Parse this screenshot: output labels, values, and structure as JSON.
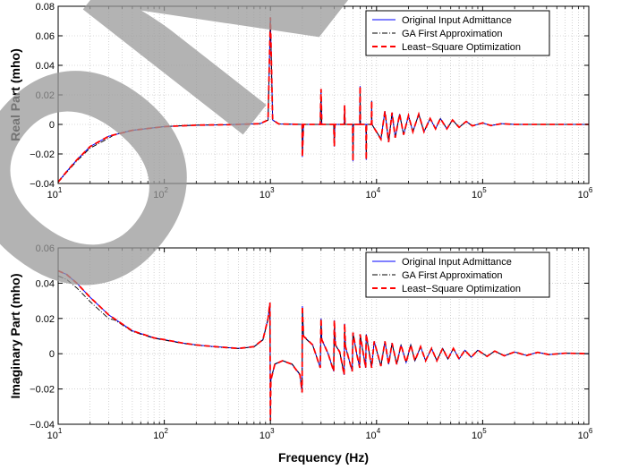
{
  "colors": {
    "original": "#0000ff",
    "ga": "#000000",
    "ls": "#ff0000",
    "watermark": "#9a9a9a"
  },
  "watermark_text": "ONLY",
  "chart_data": [
    {
      "type": "line",
      "xscale": "log",
      "xlim": [
        10,
        1000000
      ],
      "ylim": [
        -0.04,
        0.08
      ],
      "xlabel": "",
      "ylabel": "Real Part (mho)",
      "yticks": [
        "0.08",
        "0.06",
        "0.04",
        "0.02",
        "0",
        "−0.02",
        "−0.04"
      ],
      "ytick_values": [
        0.08,
        0.06,
        0.04,
        0.02,
        0,
        -0.02,
        -0.04
      ],
      "xticks": [
        {
          "base": "10",
          "exp": "1",
          "value": 10
        },
        {
          "base": "10",
          "exp": "2",
          "value": 100
        },
        {
          "base": "10",
          "exp": "3",
          "value": 1000
        },
        {
          "base": "10",
          "exp": "4",
          "value": 10000
        },
        {
          "base": "10",
          "exp": "5",
          "value": 100000
        },
        {
          "base": "10",
          "exp": "6",
          "value": 1000000
        }
      ],
      "grid": true,
      "legend_position": "top-right",
      "series": [
        {
          "name": "Original Input Admittance",
          "style": "solid"
        },
        {
          "name": "GA First Approximation",
          "style": "dashdot"
        },
        {
          "name": "Least−Square Optimization",
          "style": "dashed"
        }
      ],
      "baseline": [
        [
          10,
          -0.039
        ],
        [
          12,
          -0.032
        ],
        [
          15,
          -0.024
        ],
        [
          20,
          -0.015
        ],
        [
          30,
          -0.008
        ],
        [
          50,
          -0.004
        ],
        [
          100,
          -0.0015
        ],
        [
          200,
          -0.0005
        ],
        [
          400,
          -0.0002
        ],
        [
          800,
          0.0005
        ],
        [
          950,
          0.003
        ],
        [
          1000,
          0.0725
        ],
        [
          1050,
          0.003
        ],
        [
          1200,
          0.0003
        ],
        [
          1990,
          0.0
        ],
        [
          2000,
          -0.022
        ],
        [
          2050,
          0.0
        ],
        [
          2950,
          0.0
        ],
        [
          3000,
          0.024
        ],
        [
          3050,
          0.0
        ],
        [
          3950,
          0.0
        ],
        [
          4000,
          -0.015
        ],
        [
          4050,
          0.0
        ],
        [
          4950,
          0.0
        ],
        [
          5000,
          0.013
        ],
        [
          5050,
          0.0
        ],
        [
          5950,
          0.0
        ],
        [
          6000,
          -0.025
        ],
        [
          6050,
          0.0
        ],
        [
          6950,
          0.0
        ],
        [
          7000,
          0.026
        ],
        [
          7050,
          0.0
        ],
        [
          7950,
          0.0
        ],
        [
          8000,
          -0.024
        ],
        [
          8050,
          0.0
        ],
        [
          8950,
          0.0
        ],
        [
          9000,
          0.016
        ],
        [
          9050,
          0.0
        ],
        [
          11000,
          -0.01
        ],
        [
          12000,
          0.009
        ],
        [
          13000,
          -0.012
        ],
        [
          14000,
          0.008
        ],
        [
          15000,
          -0.009
        ],
        [
          16500,
          0.007
        ],
        [
          18000,
          -0.007
        ],
        [
          20000,
          0.006
        ],
        [
          22000,
          -0.005
        ],
        [
          25000,
          0.007
        ],
        [
          28000,
          -0.005
        ],
        [
          32000,
          0.004
        ],
        [
          36000,
          -0.003
        ],
        [
          40000,
          0.004
        ],
        [
          46000,
          -0.003
        ],
        [
          52000,
          0.003
        ],
        [
          60000,
          -0.002
        ],
        [
          70000,
          0.002
        ],
        [
          80000,
          -0.001
        ],
        [
          100000,
          0.001
        ],
        [
          120000,
          -0.0008
        ],
        [
          150000,
          0.0005
        ],
        [
          200000,
          0.0
        ],
        [
          1000000,
          0.0
        ]
      ]
    },
    {
      "type": "line",
      "xscale": "log",
      "xlim": [
        10,
        1000000
      ],
      "ylim": [
        -0.04,
        0.06
      ],
      "xlabel": "Frequency (Hz)",
      "ylabel": "Imaginary Part (mho)",
      "yticks": [
        "0.06",
        "0.04",
        "0.02",
        "0",
        "−0.02",
        "−0.04"
      ],
      "ytick_values": [
        0.06,
        0.04,
        0.02,
        0,
        -0.02,
        -0.04
      ],
      "xticks": [
        {
          "base": "10",
          "exp": "1",
          "value": 10
        },
        {
          "base": "10",
          "exp": "2",
          "value": 100
        },
        {
          "base": "10",
          "exp": "3",
          "value": 1000
        },
        {
          "base": "10",
          "exp": "4",
          "value": 10000
        },
        {
          "base": "10",
          "exp": "5",
          "value": 100000
        },
        {
          "base": "10",
          "exp": "6",
          "value": 1000000
        }
      ],
      "grid": true,
      "legend_position": "top-right",
      "series": [
        {
          "name": "Original Input Admittance",
          "style": "solid"
        },
        {
          "name": "GA First Approximation",
          "style": "dashdot"
        },
        {
          "name": "Least−Square Optimization",
          "style": "dashed"
        }
      ],
      "baseline": [
        [
          10,
          0.047
        ],
        [
          12,
          0.045
        ],
        [
          15,
          0.04
        ],
        [
          20,
          0.032
        ],
        [
          30,
          0.022
        ],
        [
          50,
          0.013
        ],
        [
          80,
          0.009
        ],
        [
          100,
          0.008
        ],
        [
          150,
          0.006
        ],
        [
          200,
          0.005
        ],
        [
          300,
          0.004
        ],
        [
          500,
          0.003
        ],
        [
          700,
          0.004
        ],
        [
          850,
          0.008
        ],
        [
          950,
          0.02
        ],
        [
          990,
          0.029
        ],
        [
          1000,
          -0.038
        ],
        [
          1010,
          -0.015
        ],
        [
          1100,
          -0.006
        ],
        [
          1300,
          -0.004
        ],
        [
          1600,
          -0.006
        ],
        [
          1900,
          -0.012
        ],
        [
          1990,
          -0.022
        ],
        [
          2000,
          0.027
        ],
        [
          2050,
          0.01
        ],
        [
          2500,
          0.005
        ],
        [
          2950,
          -0.008
        ],
        [
          3000,
          0.02
        ],
        [
          3050,
          0.008
        ],
        [
          3500,
          0.0
        ],
        [
          3950,
          -0.01
        ],
        [
          4000,
          0.019
        ],
        [
          4100,
          0.005
        ],
        [
          4500,
          0.001
        ],
        [
          4950,
          -0.012
        ],
        [
          5000,
          0.017
        ],
        [
          5100,
          0.004
        ],
        [
          5900,
          -0.01
        ],
        [
          6000,
          0.012
        ],
        [
          6500,
          0.0
        ],
        [
          6950,
          -0.008
        ],
        [
          7000,
          0.011
        ],
        [
          7900,
          -0.008
        ],
        [
          8000,
          0.011
        ],
        [
          9000,
          -0.008
        ],
        [
          9500,
          0.007
        ],
        [
          11000,
          -0.007
        ],
        [
          12000,
          0.007
        ],
        [
          13000,
          -0.006
        ],
        [
          14000,
          0.006
        ],
        [
          15500,
          -0.006
        ],
        [
          17000,
          0.005
        ],
        [
          19000,
          -0.005
        ],
        [
          21000,
          0.005
        ],
        [
          23000,
          -0.004
        ],
        [
          26000,
          0.004
        ],
        [
          29000,
          -0.004
        ],
        [
          33000,
          0.003
        ],
        [
          37000,
          -0.004
        ],
        [
          42000,
          0.003
        ],
        [
          47000,
          -0.003
        ],
        [
          53000,
          0.003
        ],
        [
          60000,
          -0.003
        ],
        [
          68000,
          0.002
        ],
        [
          78000,
          -0.002
        ],
        [
          90000,
          0.002
        ],
        [
          110000,
          -0.0015
        ],
        [
          130000,
          0.0015
        ],
        [
          160000,
          -0.0012
        ],
        [
          200000,
          0.001
        ],
        [
          260000,
          -0.001
        ],
        [
          330000,
          0.0008
        ],
        [
          420000,
          -0.0005
        ],
        [
          600000,
          0.0003
        ],
        [
          1000000,
          0.0
        ]
      ]
    }
  ]
}
